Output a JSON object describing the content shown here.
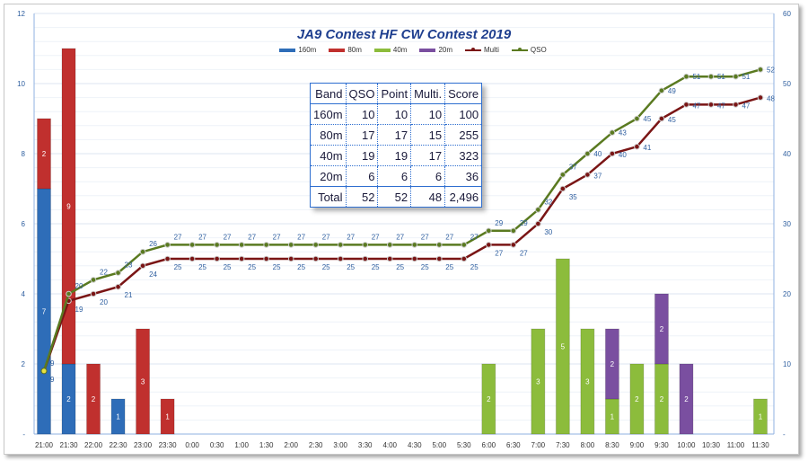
{
  "chart_data": {
    "type": "bar+line",
    "title": "JA9 Contest  HF CW  Contest 2019",
    "categories": [
      "21:00",
      "21:30",
      "22:00",
      "22:30",
      "23:00",
      "23:30",
      "0:00",
      "0:30",
      "1:00",
      "1:30",
      "2:00",
      "2:30",
      "3:00",
      "3:30",
      "4:00",
      "4:30",
      "5:00",
      "5:30",
      "6:00",
      "6:30",
      "7:00",
      "7:30",
      "8:00",
      "8:30",
      "9:00",
      "9:30",
      "10:00",
      "10:30",
      "11:00",
      "11:30"
    ],
    "ylim_left": [
      0,
      12
    ],
    "yticks_left": [
      0,
      2,
      4,
      6,
      8,
      10,
      12
    ],
    "ylim_right": [
      0,
      60
    ],
    "yticks_right": [
      0,
      10,
      20,
      30,
      40,
      50,
      60
    ],
    "legend_position": "top",
    "bar_series": [
      {
        "name": "160m",
        "color": "#2e6db8",
        "values": [
          7,
          2,
          0,
          1,
          0,
          0,
          0,
          0,
          0,
          0,
          0,
          0,
          0,
          0,
          0,
          0,
          0,
          0,
          0,
          0,
          0,
          0,
          0,
          0,
          0,
          0,
          0,
          0,
          0,
          0
        ]
      },
      {
        "name": "80m",
        "color": "#c0302e",
        "values": [
          2,
          9,
          2,
          0,
          3,
          1,
          0,
          0,
          0,
          0,
          0,
          0,
          0,
          0,
          0,
          0,
          0,
          0,
          0,
          0,
          0,
          0,
          0,
          0,
          0,
          0,
          0,
          0,
          0,
          0
        ]
      },
      {
        "name": "40m",
        "color": "#8cbc3c",
        "values": [
          0,
          0,
          0,
          0,
          0,
          0,
          0,
          0,
          0,
          0,
          0,
          0,
          0,
          0,
          0,
          0,
          0,
          0,
          2,
          0,
          3,
          5,
          3,
          1,
          2,
          2,
          0,
          0,
          0,
          1
        ]
      },
      {
        "name": "20m",
        "color": "#7a4fa0",
        "values": [
          0,
          0,
          0,
          0,
          0,
          0,
          0,
          0,
          0,
          0,
          0,
          0,
          0,
          0,
          0,
          0,
          0,
          0,
          0,
          0,
          0,
          0,
          0,
          2,
          0,
          2,
          2,
          0,
          0,
          0
        ]
      }
    ],
    "line_series": [
      {
        "name": "Multi",
        "color": "#7a1515",
        "axis": "right",
        "values": [
          9,
          19,
          20,
          21,
          24,
          25,
          25,
          25,
          25,
          25,
          25,
          25,
          25,
          25,
          25,
          25,
          25,
          25,
          27,
          27,
          30,
          35,
          37,
          40,
          41,
          45,
          47,
          47,
          47,
          48
        ]
      },
      {
        "name": "QSO",
        "color": "#5a7a20",
        "axis": "right",
        "values": [
          9,
          20,
          22,
          23,
          26,
          27,
          27,
          27,
          27,
          27,
          27,
          27,
          27,
          27,
          27,
          27,
          27,
          27,
          29,
          29,
          32,
          37,
          40,
          43,
          45,
          49,
          51,
          51,
          51,
          52
        ]
      }
    ],
    "grid": true
  },
  "table": {
    "headers": [
      "Band",
      "QSO",
      "Point",
      "Multi.",
      "Score"
    ],
    "rows": [
      [
        "160m",
        "10",
        "10",
        "10",
        "100"
      ],
      [
        "80m",
        "17",
        "17",
        "15",
        "255"
      ],
      [
        "40m",
        "19",
        "19",
        "17",
        "323"
      ],
      [
        "20m",
        "6",
        "6",
        "6",
        "36"
      ]
    ],
    "total": [
      "Total",
      "52",
      "52",
      "48",
      "2,496"
    ]
  }
}
